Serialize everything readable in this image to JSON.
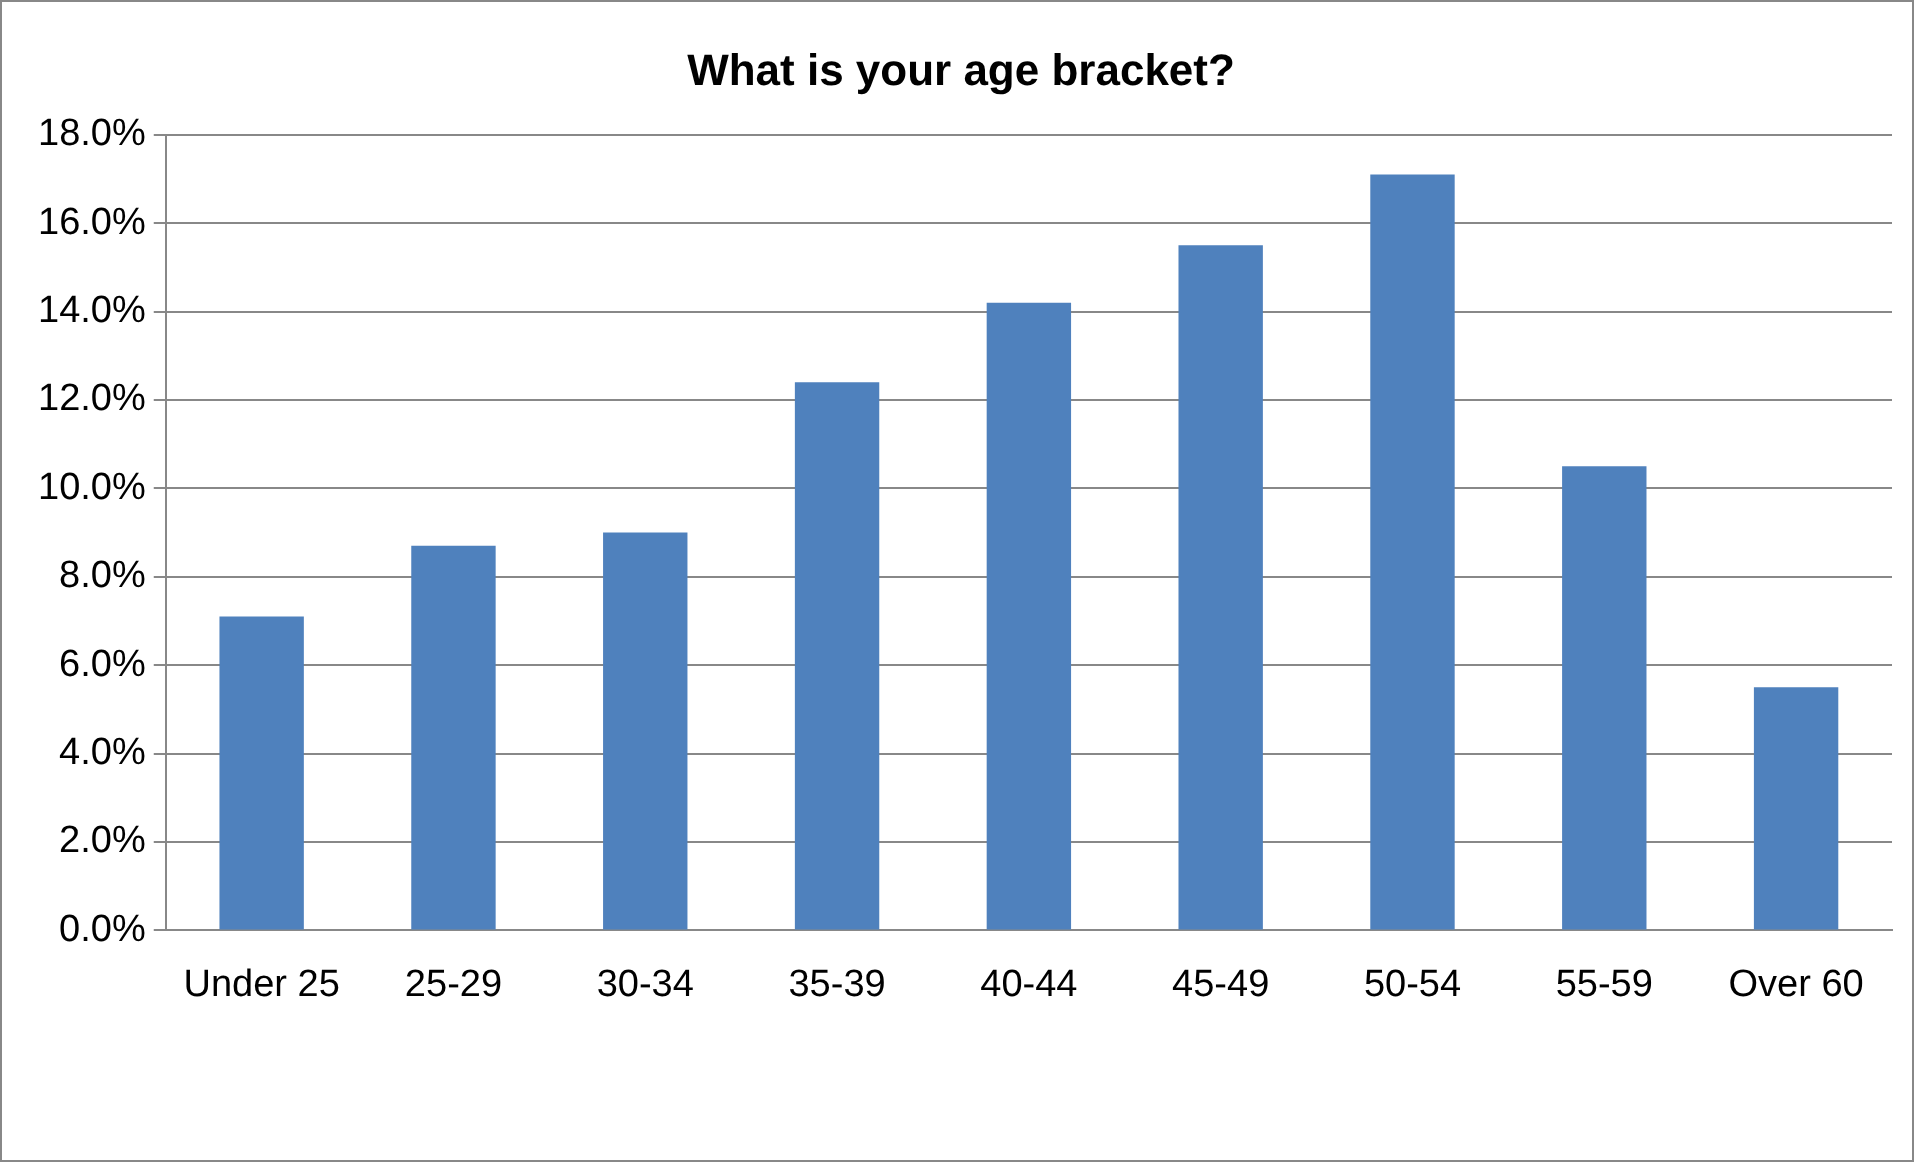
{
  "chart_data": {
    "type": "bar",
    "title": "What is your age bracket?",
    "categories": [
      "Under 25",
      "25-29",
      "30-34",
      "35-39",
      "40-44",
      "45-49",
      "50-54",
      "55-59",
      "Over 60"
    ],
    "values": [
      7.1,
      8.7,
      9.0,
      12.4,
      14.2,
      15.5,
      17.1,
      10.5,
      5.5
    ],
    "color": "#4f81bd",
    "ylim": [
      0,
      18
    ],
    "yticks": [
      {
        "value": 0,
        "label": "0.0%"
      },
      {
        "value": 2,
        "label": "2.0%"
      },
      {
        "value": 4,
        "label": "4.0%"
      },
      {
        "value": 6,
        "label": "6.0%"
      },
      {
        "value": 8,
        "label": "8.0%"
      },
      {
        "value": 10,
        "label": "10.0%"
      },
      {
        "value": 12,
        "label": "12.0%"
      },
      {
        "value": 14,
        "label": "14.0%"
      },
      {
        "value": 16,
        "label": "16.0%"
      },
      {
        "value": 18,
        "label": "18.0%"
      }
    ],
    "grid": "y",
    "legend": false
  }
}
